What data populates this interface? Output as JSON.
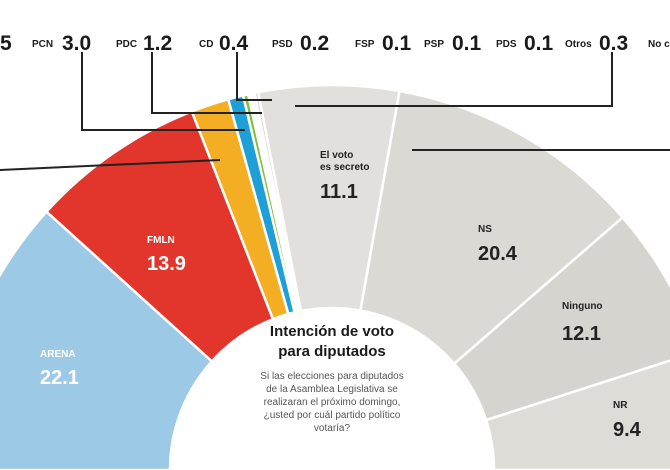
{
  "chart_data": {
    "type": "pie",
    "style": "semicircle-donut",
    "title": "Intención de voto para diputados",
    "question": [
      "Si las elecciones para diputados",
      "de la Asamblea Legislativa se",
      "realizaran el próximo domingo,",
      "¿usted por cuál partido político",
      "votaría?"
    ],
    "slices": [
      {
        "label": "ARENA",
        "value": 22.1,
        "color": "#9cc9e6",
        "text_color": "#ffffff"
      },
      {
        "label": "FMLN",
        "value": 13.9,
        "color": "#e2352b",
        "text_color": "#ffffff"
      },
      {
        "label": "PCN",
        "value": 3.0,
        "color": "#f4ae24",
        "text_color": "#ffffff"
      },
      {
        "label": "PDC",
        "value": 1.2,
        "color": "#1f9fd8",
        "text_color": "#ffffff"
      },
      {
        "label": "CD",
        "value": 0.4,
        "color": "#7fbf3a",
        "text_color": "#ffffff"
      },
      {
        "label": "PSD",
        "value": 0.2,
        "color": "#c8d95a",
        "text_color": "#ffffff"
      },
      {
        "label": "FSP",
        "value": 0.1,
        "color": "#ece67a",
        "text_color": "#ffffff"
      },
      {
        "label": "PSP",
        "value": 0.1,
        "color": "#f2ead0",
        "text_color": "#ffffff"
      },
      {
        "label": "PDS",
        "value": 0.1,
        "color": "#e6e3d6",
        "text_color": "#ffffff"
      },
      {
        "label": "Otros",
        "value": 0.3,
        "color": "#dcdad0",
        "text_color": "#ffffff"
      },
      {
        "label": "El voto es secreto",
        "value": 11.1,
        "color": "#e1e0dc",
        "text_color": "#222222"
      },
      {
        "label": "NS",
        "value": 20.4,
        "color": "#dad9d4",
        "text_color": "#222222"
      },
      {
        "label": "Ninguno",
        "value": 12.1,
        "color": "#d5d4cf",
        "text_color": "#222222"
      },
      {
        "label": "NR",
        "value": 9.4,
        "color": "#dddcd7",
        "text_color": "#222222"
      }
    ],
    "top_labels": [
      {
        "name": "",
        "value": "5"
      },
      {
        "name": "PCN",
        "value": "3.0"
      },
      {
        "name": "PDC",
        "value": "1.2"
      },
      {
        "name": "CD",
        "value": "0.4"
      },
      {
        "name": "PSD",
        "value": "0.2"
      },
      {
        "name": "FSP",
        "value": "0.1"
      },
      {
        "name": "PSP",
        "value": "0.1"
      },
      {
        "name": "PDS",
        "value": "0.1"
      },
      {
        "name": "Otros",
        "value": "0.3"
      },
      {
        "name": "No c",
        "value": ""
      }
    ],
    "inner_labels": [
      {
        "name": "ARENA",
        "value": "22.1"
      },
      {
        "name": "FMLN",
        "value": "13.9"
      },
      {
        "name_lines": [
          "El voto",
          "es secreto"
        ],
        "value": "11.1"
      },
      {
        "name": "NS",
        "value": "20.4"
      },
      {
        "name": "Ninguno",
        "value": "12.1"
      },
      {
        "name": "NR",
        "value": "9.4"
      }
    ]
  }
}
